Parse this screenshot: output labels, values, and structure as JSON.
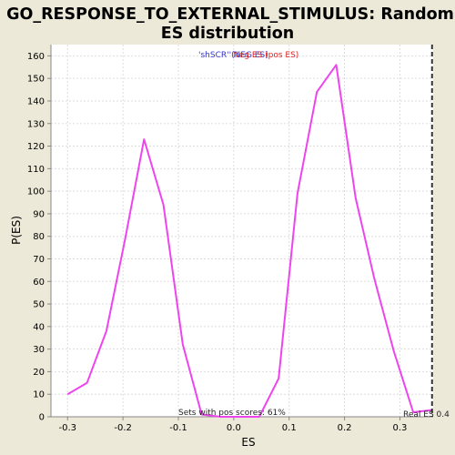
{
  "chart_data": {
    "type": "line",
    "title_line1": "GO_RESPONSE_TO_EXTERNAL_STIMULUS: Random",
    "title_line2": "ES distribution",
    "xlabel": "ES",
    "ylabel": "P(ES)",
    "xlim": [
      -0.33,
      0.36
    ],
    "ylim": [
      0,
      165
    ],
    "x_ticks": [
      -0.3,
      -0.2,
      -0.1,
      0.0,
      0.1,
      0.2,
      0.3
    ],
    "x_tick_labels": [
      "-0.3",
      "-0.2",
      "-0.1",
      "0.0",
      "0.1",
      "0.2",
      "0.3"
    ],
    "y_ticks": [
      0,
      10,
      20,
      30,
      40,
      50,
      60,
      70,
      80,
      90,
      100,
      110,
      120,
      130,
      140,
      150,
      160
    ],
    "y_tick_labels": [
      "0",
      "10",
      "20",
      "30",
      "40",
      "50",
      "60",
      "70",
      "80",
      "90",
      "100",
      "110",
      "120",
      "130",
      "140",
      "150",
      "160"
    ],
    "grid": true,
    "series": [
      {
        "color": "#ee44ee",
        "x": [
          -0.3,
          -0.265,
          -0.23,
          -0.196,
          -0.162,
          -0.127,
          -0.092,
          -0.058,
          -0.023,
          0.012,
          0.046,
          0.081,
          0.115,
          0.15,
          0.185,
          0.22,
          0.254,
          0.289,
          0.324,
          0.358
        ],
        "y": [
          10,
          15,
          38,
          79,
          123,
          94,
          32,
          1,
          0,
          0,
          0,
          17,
          99,
          144,
          156,
          97,
          61,
          29,
          2,
          3
        ]
      }
    ],
    "real_es": 0.358,
    "annotations": {
      "legend_blue": "'shSCR''(NEG ES)",
      "legend_red": "Neg ES (pos ES)",
      "sets_pos": "Sets with pos scores: 61%",
      "real_es_label": "Real ES 0.4"
    },
    "colors": {
      "background": "#ece9d8",
      "plot_bg": "#ffffff",
      "line": "#ee44ee",
      "legend_blue": "#3333cc",
      "legend_red": "#dd2222",
      "grid": "#dddddd",
      "marker": "#333333"
    }
  }
}
